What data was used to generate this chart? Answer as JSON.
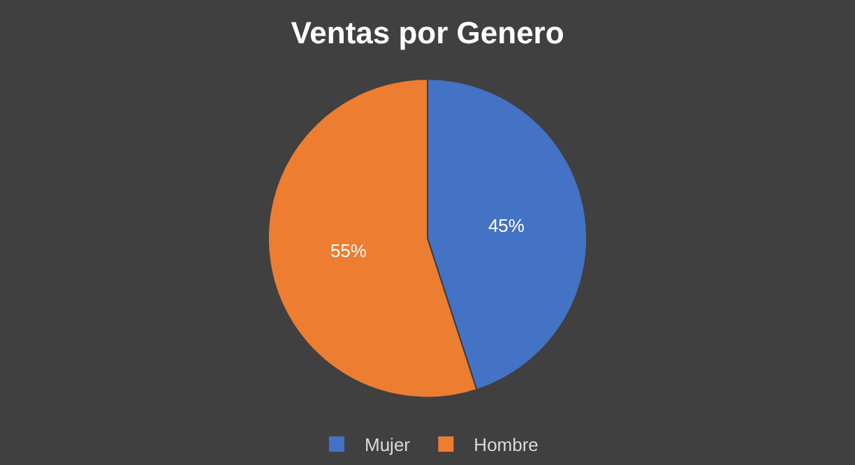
{
  "chart_data": {
    "type": "pie",
    "title": "Ventas por Genero",
    "categories": [
      "Mujer",
      "Hombre"
    ],
    "values": [
      45,
      55
    ],
    "colors": [
      "#4472c4",
      "#ed7d31"
    ],
    "value_labels": [
      "45%",
      "55%"
    ],
    "legend": "bottom"
  }
}
